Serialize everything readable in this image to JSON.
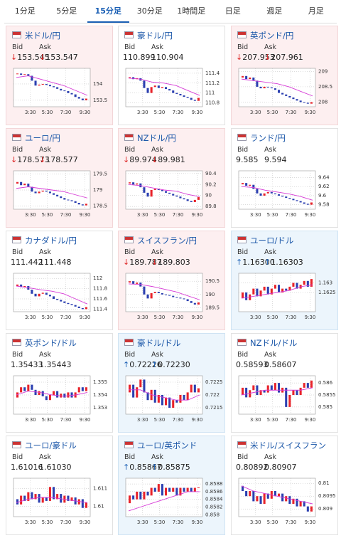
{
  "tabs": {
    "items": [
      "1分足",
      "5分足",
      "15分足",
      "30分足",
      "1時間足",
      "日足",
      "週足",
      "月足"
    ],
    "active": 2
  },
  "bid_label": "Bid",
  "ask_label": "Ask",
  "xticks": [
    "3:30",
    "5:30",
    "7:30",
    "9:30"
  ],
  "cards": [
    {
      "pair": "米ドル/円",
      "arrow": "↓",
      "bid": "153.545",
      "ask": "153.547",
      "trend": "down",
      "ylim": [
        153.3,
        154.48
      ],
      "yticks": [
        154,
        153.5
      ],
      "closes": [
        154.3,
        154.32,
        154.28,
        154.3,
        154.25,
        154.1,
        153.95,
        153.98,
        154.0,
        153.97,
        153.93,
        153.9,
        153.85,
        153.8,
        153.78,
        153.72,
        153.68,
        153.6,
        153.55,
        153.5,
        153.55
      ],
      "ma": [
        154.2,
        154.25,
        154.15,
        154.05,
        153.95,
        153.8,
        153.65
      ]
    },
    {
      "pair": "豪ドル/円",
      "bid": "110.899",
      "ask": "110.904",
      "trend": "none",
      "ylim": [
        110.72,
        111.5
      ],
      "yticks": [
        111.4,
        111.2,
        111,
        110.8
      ],
      "closes": [
        111.3,
        111.32,
        111.28,
        111.3,
        111.25,
        111.1,
        111.0,
        111.12,
        111.15,
        111.1,
        111.12,
        111.08,
        111.05,
        111.0,
        110.98,
        110.95,
        110.92,
        110.9,
        110.86,
        110.84,
        110.9
      ],
      "ma": [
        111.3,
        111.28,
        111.22,
        111.2,
        111.15,
        111.05,
        110.95
      ]
    },
    {
      "pair": "英ポンド/円",
      "arrow": "↓",
      "bid": "207.953",
      "ask": "207.961",
      "trend": "down",
      "ylim": [
        207.85,
        209.1
      ],
      "yticks": [
        209,
        208.5,
        208
      ],
      "closes": [
        208.8,
        208.85,
        208.75,
        208.8,
        208.7,
        208.5,
        208.45,
        208.5,
        208.48,
        208.45,
        208.4,
        208.3,
        208.25,
        208.2,
        208.15,
        208.1,
        208.05,
        208.0,
        207.98,
        207.95,
        208.0
      ],
      "ma": [
        208.75,
        208.7,
        208.65,
        208.6,
        208.5,
        208.35,
        208.2
      ]
    },
    {
      "pair": "ユーロ/円",
      "arrow": "↓",
      "bid": "178.573",
      "ask": "178.577",
      "trend": "down",
      "ylim": [
        178.4,
        179.6
      ],
      "yticks": [
        179.5,
        179,
        178.5
      ],
      "closes": [
        179.2,
        179.25,
        179.15,
        179.2,
        179.1,
        178.95,
        178.9,
        178.95,
        178.98,
        178.95,
        178.9,
        178.85,
        178.8,
        178.75,
        178.7,
        178.68,
        178.65,
        178.6,
        178.55,
        178.52,
        178.57
      ],
      "ma": [
        179.05,
        179.1,
        179.05,
        179.0,
        178.95,
        178.85,
        178.75
      ]
    },
    {
      "pair": "NZドル/円",
      "arrow": "↓",
      "bid": "89.974",
      "ask": "89.981",
      "trend": "down",
      "ylim": [
        89.75,
        90.45
      ],
      "yticks": [
        90.4,
        90.2,
        90,
        89.8
      ],
      "closes": [
        90.22,
        90.24,
        90.2,
        90.22,
        90.15,
        90.05,
        89.98,
        90.1,
        90.12,
        90.1,
        90.08,
        90.05,
        90.03,
        90.0,
        89.98,
        89.95,
        89.93,
        89.9,
        89.88,
        89.92,
        89.97
      ],
      "ma": [
        90.2,
        90.18,
        90.14,
        90.1,
        90.08,
        90.02,
        89.98
      ]
    },
    {
      "pair": "ランド/円",
      "bid": "9.585",
      "ask": "9.594",
      "trend": "none",
      "ylim": [
        9.57,
        9.655
      ],
      "yticks": [
        9.64,
        9.62,
        9.6,
        9.58
      ],
      "closes": [
        9.625,
        9.628,
        9.622,
        9.624,
        9.615,
        9.605,
        9.6,
        9.605,
        9.608,
        9.605,
        9.603,
        9.6,
        9.598,
        9.595,
        9.593,
        9.59,
        9.588,
        9.585,
        9.582,
        9.58,
        9.585
      ],
      "ma": [
        9.62,
        9.618,
        9.612,
        9.608,
        9.604,
        9.598,
        9.59
      ]
    },
    {
      "pair": "カナダドル/円",
      "bid": "111.442",
      "ask": "111.448",
      "trend": "none",
      "ylim": [
        111.35,
        112.1
      ],
      "yticks": [
        112,
        111.8,
        111.6,
        111.4
      ],
      "closes": [
        111.85,
        111.88,
        111.83,
        111.85,
        111.78,
        111.7,
        111.65,
        111.7,
        111.72,
        111.68,
        111.65,
        111.6,
        111.58,
        111.55,
        111.52,
        111.5,
        111.48,
        111.45,
        111.42,
        111.4,
        111.44
      ],
      "ma": [
        111.85,
        111.82,
        111.78,
        111.75,
        111.7,
        111.6,
        111.5
      ]
    },
    {
      "pair": "スイスフラン/円",
      "arrow": "↓",
      "bid": "189.787",
      "ask": "189.803",
      "trend": "down",
      "ylim": [
        189.35,
        190.8
      ],
      "yticks": [
        190.5,
        190,
        189.5
      ],
      "closes": [
        190.45,
        190.5,
        190.4,
        190.45,
        190.3,
        190.0,
        189.85,
        190.05,
        190.1,
        190.05,
        190.0,
        189.98,
        189.95,
        189.9,
        189.88,
        189.85,
        189.82,
        189.75,
        189.68,
        189.62,
        189.7
      ],
      "ma": [
        190.4,
        190.38,
        190.3,
        190.2,
        190.1,
        189.95,
        189.8
      ]
    },
    {
      "pair": "ユーロ/ドル",
      "arrow": "↑",
      "bid": "1.16300",
      "ask": "1.16303",
      "trend": "up",
      "ylim": [
        1.1615,
        1.1635
      ],
      "yticks": [
        1.163,
        1.1625
      ],
      "closes": [
        1.1622,
        1.1625,
        1.1621,
        1.1624,
        1.1627,
        1.1623,
        1.1626,
        1.1628,
        1.1624,
        1.1627,
        1.1629,
        1.1625,
        1.1627,
        1.1626,
        1.1628,
        1.163,
        1.1627,
        1.1629,
        1.1631,
        1.1628,
        1.1632
      ],
      "ma": [
        1.1622,
        1.1623,
        1.1624,
        1.1625,
        1.1626,
        1.1628,
        1.1629
      ]
    },
    {
      "pair": "英ポンド/ドル",
      "bid": "1.35433",
      "ask": "1.35443",
      "trend": "none",
      "ylim": [
        1.3525,
        1.3555
      ],
      "yticks": [
        1.355,
        1.354,
        1.353
      ],
      "closes": [
        1.3538,
        1.3542,
        1.3546,
        1.3543,
        1.3548,
        1.3544,
        1.354,
        1.3543,
        1.3539,
        1.3536,
        1.354,
        1.3543,
        1.3538,
        1.3541,
        1.3538,
        1.3542,
        1.3538,
        1.3542,
        1.3546,
        1.3543,
        1.3546
      ],
      "ma": [
        1.354,
        1.3543,
        1.3542,
        1.354,
        1.3539,
        1.354,
        1.3542
      ]
    },
    {
      "pair": "豪ドル/ドル",
      "arrow": "↑",
      "bid": "0.72226",
      "ask": "0.72230",
      "trend": "up",
      "ylim": [
        0.72125,
        0.72275
      ],
      "yticks": [
        0.7225,
        0.722,
        0.7215
      ],
      "closes": [
        0.7221,
        0.7224,
        0.7219,
        0.7223,
        0.7226,
        0.7221,
        0.7218,
        0.7222,
        0.7217,
        0.722,
        0.7216,
        0.7219,
        0.7215,
        0.7218,
        0.7217,
        0.722,
        0.7218,
        0.7221,
        0.7224,
        0.7221,
        0.72226
      ],
      "ma": [
        0.7222,
        0.7222,
        0.722,
        0.7219,
        0.7218,
        0.7218,
        0.722
      ]
    },
    {
      "pair": "NZドル/ドル",
      "bid": "0.58593",
      "ask": "0.58607",
      "trend": "none",
      "ylim": [
        0.5847,
        0.5863
      ],
      "yticks": [
        0.586,
        0.5855,
        0.585
      ],
      "closes": [
        0.5855,
        0.5858,
        0.5854,
        0.5857,
        0.5859,
        0.5855,
        0.5857,
        0.5856,
        0.5859,
        0.5857,
        0.586,
        0.5856,
        0.5858,
        0.585,
        0.5855,
        0.5857,
        0.5855,
        0.5858,
        0.586,
        0.5858,
        0.5861
      ],
      "ma": [
        0.5855,
        0.5856,
        0.5857,
        0.5857,
        0.5857,
        0.5857,
        0.5858
      ]
    },
    {
      "pair": "ユーロ/豪ドル",
      "bid": "1.61016",
      "ask": "1.61030",
      "trend": "none",
      "ylim": [
        1.6094,
        1.6116
      ],
      "yticks": [
        1.611,
        1.61
      ],
      "closes": [
        1.6104,
        1.6101,
        1.6106,
        1.6103,
        1.6108,
        1.6104,
        1.6107,
        1.6102,
        1.6105,
        1.6103,
        1.6111,
        1.6104,
        1.6107,
        1.6102,
        1.6106,
        1.6103,
        1.6105,
        1.6101,
        1.6104,
        1.6099,
        1.6102
      ],
      "ma": [
        1.6102,
        1.6104,
        1.6105,
        1.6105,
        1.6104,
        1.6103,
        1.6102
      ]
    },
    {
      "pair": "ユーロ/英ポンド",
      "arrow": "↑",
      "bid": "0.85867",
      "ask": "0.85875",
      "trend": "up",
      "ylim": [
        0.85795,
        0.85895
      ],
      "yticks": [
        0.8588,
        0.8586,
        0.8584,
        0.8582,
        0.858
      ],
      "closes": [
        0.8583,
        0.8585,
        0.8584,
        0.8586,
        0.8584,
        0.8586,
        0.8585,
        0.8587,
        0.8586,
        0.8588,
        0.8585,
        0.8587,
        0.8586,
        0.8587,
        0.8585,
        0.8587,
        0.8586,
        0.8587,
        0.8586,
        0.8587,
        0.85871
      ],
      "ma": [
        0.8581,
        0.8582,
        0.8583,
        0.8584,
        0.8585,
        0.8586,
        0.8586
      ]
    },
    {
      "pair": "米ドル/スイスフラン",
      "bid": "0.80892",
      "ask": "0.80907",
      "trend": "none",
      "ylim": [
        0.8087,
        0.8102
      ],
      "yticks": [
        0.81,
        0.8095,
        0.809
      ],
      "closes": [
        0.8099,
        0.8097,
        0.8095,
        0.8097,
        0.8093,
        0.8095,
        0.8092,
        0.8096,
        0.8094,
        0.8097,
        0.8095,
        0.8096,
        0.8093,
        0.8095,
        0.8092,
        0.8094,
        0.8091,
        0.8093,
        0.8091,
        0.8089,
        0.8091
      ],
      "ma": [
        0.8099,
        0.8097,
        0.8096,
        0.8095,
        0.8094,
        0.8093,
        0.8092
      ]
    }
  ]
}
